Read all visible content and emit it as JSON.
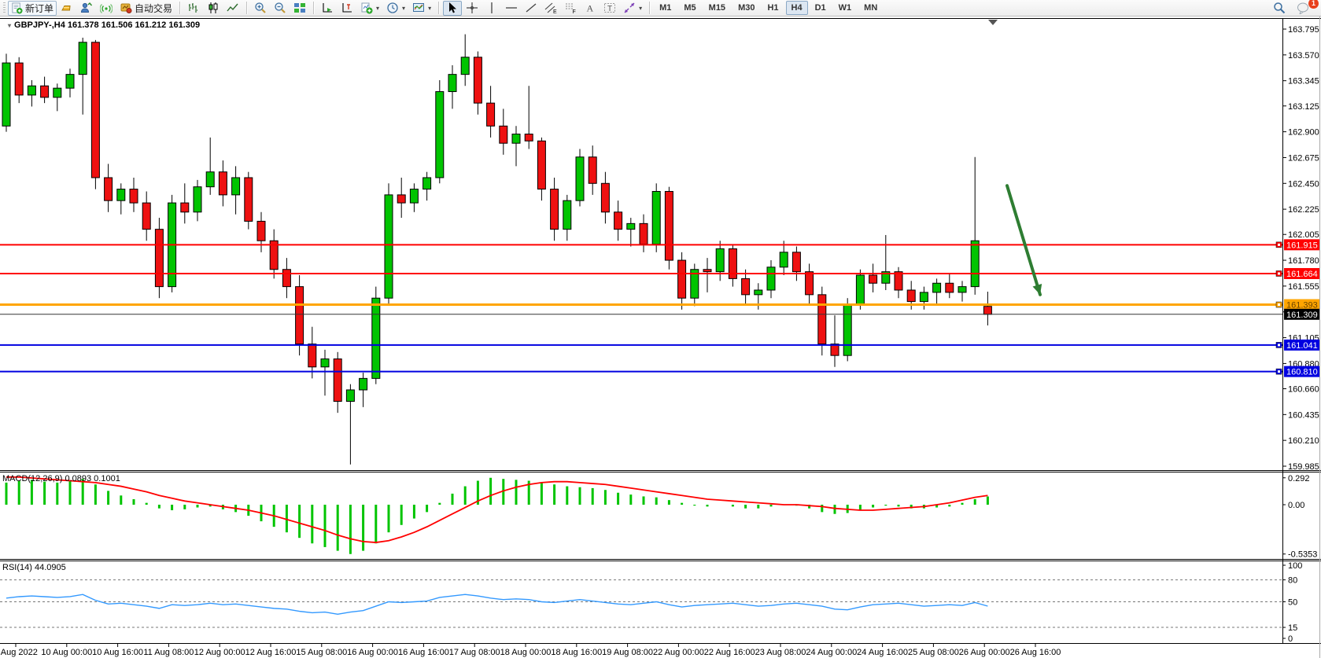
{
  "toolbar": {
    "new_order": "新订单",
    "autotrade": "自动交易",
    "timeframes": [
      "M1",
      "M5",
      "M15",
      "M30",
      "H1",
      "H4",
      "D1",
      "W1",
      "MN"
    ],
    "active_timeframe": "H4",
    "chat_badge": "1"
  },
  "chart": {
    "title": "GBPJPY-,H4  161.378 161.506 161.212 161.309",
    "symbol": "GBPJPY-",
    "period": "H4"
  },
  "chart_data": [
    {
      "type": "candlestick",
      "title": "GBPJPY-,H4",
      "current_bar": {
        "open": 161.378,
        "high": 161.506,
        "low": 161.212,
        "close": 161.309
      },
      "ylim": [
        159.95,
        163.9
      ],
      "grid": false,
      "y_ticks": [
        "163.795",
        "163.570",
        "163.345",
        "163.125",
        "162.900",
        "162.675",
        "162.450",
        "162.225",
        "162.005",
        "161.780",
        "161.555",
        "161.330",
        "161.105",
        "160.880",
        "160.660",
        "160.435",
        "160.210",
        "159.985"
      ],
      "x_labels": [
        "9 Aug 2022",
        "10 Aug 00:00",
        "10 Aug 16:00",
        "11 Aug 08:00",
        "12 Aug 00:00",
        "12 Aug 16:00",
        "15 Aug 08:00",
        "16 Aug 00:00",
        "16 Aug 16:00",
        "17 Aug 08:00",
        "18 Aug 00:00",
        "18 Aug 16:00",
        "19 Aug 08:00",
        "22 Aug 00:00",
        "22 Aug 16:00",
        "23 Aug 08:00",
        "24 Aug 00:00",
        "24 Aug 16:00",
        "25 Aug 08:00",
        "26 Aug 00:00",
        "26 Aug 16:00"
      ],
      "colors": {
        "bull": "#00C400",
        "bear": "#EE1111",
        "wick": "#000000",
        "background": "#FFFFFF",
        "border": "#000000"
      },
      "candles": [
        [
          162.95,
          163.58,
          162.9,
          163.5
        ],
        [
          163.5,
          163.55,
          163.15,
          163.22
        ],
        [
          163.22,
          163.35,
          163.12,
          163.3
        ],
        [
          163.3,
          163.38,
          163.15,
          163.2
        ],
        [
          163.2,
          163.32,
          163.08,
          163.28
        ],
        [
          163.28,
          163.45,
          163.2,
          163.4
        ],
        [
          163.4,
          163.72,
          163.05,
          163.68
        ],
        [
          163.68,
          163.7,
          162.4,
          162.5
        ],
        [
          162.5,
          162.62,
          162.2,
          162.3
        ],
        [
          162.3,
          162.45,
          162.18,
          162.4
        ],
        [
          162.4,
          162.5,
          162.2,
          162.28
        ],
        [
          162.28,
          162.38,
          161.95,
          162.05
        ],
        [
          162.05,
          162.15,
          161.45,
          161.55
        ],
        [
          161.55,
          162.35,
          161.5,
          162.28
        ],
        [
          162.28,
          162.45,
          162.1,
          162.2
        ],
        [
          162.2,
          162.48,
          162.12,
          162.42
        ],
        [
          162.42,
          162.85,
          162.35,
          162.55
        ],
        [
          162.55,
          162.65,
          162.25,
          162.35
        ],
        [
          162.35,
          162.6,
          162.18,
          162.5
        ],
        [
          162.5,
          162.55,
          162.05,
          162.12
        ],
        [
          162.12,
          162.2,
          161.85,
          161.95
        ],
        [
          161.95,
          162.05,
          161.62,
          161.7
        ],
        [
          161.7,
          161.8,
          161.45,
          161.55
        ],
        [
          161.55,
          161.65,
          160.95,
          161.05
        ],
        [
          161.05,
          161.2,
          160.75,
          160.85
        ],
        [
          160.85,
          161.0,
          160.6,
          160.92
        ],
        [
          160.92,
          160.98,
          160.45,
          160.55
        ],
        [
          160.55,
          160.7,
          160.0,
          160.65
        ],
        [
          160.65,
          160.8,
          160.5,
          160.75
        ],
        [
          160.75,
          161.55,
          160.7,
          161.45
        ],
        [
          161.45,
          162.45,
          161.4,
          162.35
        ],
        [
          162.35,
          162.5,
          162.15,
          162.28
        ],
        [
          162.28,
          162.45,
          162.2,
          162.4
        ],
        [
          162.4,
          162.55,
          162.3,
          162.5
        ],
        [
          162.5,
          163.35,
          162.45,
          163.25
        ],
        [
          163.25,
          163.48,
          163.1,
          163.4
        ],
        [
          163.4,
          163.75,
          163.3,
          163.55
        ],
        [
          163.55,
          163.6,
          163.05,
          163.15
        ],
        [
          163.15,
          163.3,
          162.85,
          162.95
        ],
        [
          162.95,
          163.1,
          162.7,
          162.8
        ],
        [
          162.8,
          162.95,
          162.6,
          162.88
        ],
        [
          162.88,
          163.3,
          162.75,
          162.82
        ],
        [
          162.82,
          162.85,
          162.3,
          162.4
        ],
        [
          162.4,
          162.5,
          161.95,
          162.05
        ],
        [
          162.05,
          162.35,
          161.95,
          162.3
        ],
        [
          162.3,
          162.75,
          162.25,
          162.68
        ],
        [
          162.68,
          162.78,
          162.35,
          162.45
        ],
        [
          162.45,
          162.55,
          162.1,
          162.2
        ],
        [
          162.2,
          162.3,
          161.95,
          162.05
        ],
        [
          162.05,
          162.15,
          161.9,
          162.1
        ],
        [
          162.1,
          162.18,
          161.85,
          161.92
        ],
        [
          161.92,
          162.45,
          161.85,
          162.38
        ],
        [
          162.38,
          162.42,
          161.7,
          161.78
        ],
        [
          161.78,
          161.85,
          161.35,
          161.45
        ],
        [
          161.45,
          161.75,
          161.38,
          161.7
        ],
        [
          161.7,
          161.8,
          161.5,
          161.68
        ],
        [
          161.68,
          161.95,
          161.6,
          161.88
        ],
        [
          161.88,
          161.92,
          161.55,
          161.62
        ],
        [
          161.62,
          161.7,
          161.4,
          161.48
        ],
        [
          161.48,
          161.58,
          161.35,
          161.52
        ],
        [
          161.52,
          161.78,
          161.45,
          161.72
        ],
        [
          161.72,
          161.95,
          161.65,
          161.85
        ],
        [
          161.85,
          161.9,
          161.6,
          161.68
        ],
        [
          161.68,
          161.75,
          161.4,
          161.48
        ],
        [
          161.48,
          161.55,
          160.95,
          161.05
        ],
        [
          161.05,
          161.3,
          160.85,
          160.95
        ],
        [
          160.95,
          161.45,
          160.9,
          161.4
        ],
        [
          161.4,
          161.7,
          161.35,
          161.65
        ],
        [
          161.65,
          161.75,
          161.5,
          161.58
        ],
        [
          161.58,
          162.0,
          161.52,
          161.68
        ],
        [
          161.68,
          161.72,
          161.45,
          161.52
        ],
        [
          161.52,
          161.6,
          161.35,
          161.42
        ],
        [
          161.42,
          161.55,
          161.35,
          161.5
        ],
        [
          161.5,
          161.62,
          161.4,
          161.58
        ],
        [
          161.58,
          161.66,
          161.45,
          161.5
        ],
        [
          161.5,
          161.6,
          161.42,
          161.55
        ],
        [
          161.55,
          162.68,
          161.48,
          161.95
        ],
        [
          161.378,
          161.506,
          161.212,
          161.309
        ]
      ],
      "hlines": [
        {
          "price": 161.915,
          "color": "#FF0000",
          "label": "161.915",
          "text_color": "#FFFFFF",
          "width": 2
        },
        {
          "price": 161.664,
          "color": "#FF0000",
          "label": "161.664",
          "text_color": "#FFFFFF",
          "width": 2
        },
        {
          "price": 161.393,
          "color": "#FFA500",
          "label": "161.393",
          "text_color": "#6b4400",
          "width": 3
        },
        {
          "price": 161.041,
          "color": "#0000E0",
          "label": "161.041",
          "text_color": "#FFFFFF",
          "width": 2
        },
        {
          "price": 160.81,
          "color": "#0000E0",
          "label": "160.810",
          "text_color": "#FFFFFF",
          "width": 2
        }
      ],
      "current_price": {
        "price": 161.309,
        "label": "161.309",
        "line_color": "#333333",
        "tag_bg": "#000000",
        "tag_fg": "#FFFFFF"
      },
      "arrow_annotation": {
        "color": "#2E7D32",
        "from_price": 162.43,
        "to_price": 161.48
      }
    },
    {
      "type": "bar",
      "name": "MACD",
      "label": "MACD(12,26,9)  0.0893  0.1001",
      "main_value": 0.0893,
      "signal_value": 0.1001,
      "y_ticks": [
        "0.292",
        "0.00",
        "-0.5353"
      ],
      "tick_values": [
        0.292,
        0,
        -0.5353
      ],
      "histogram_color": "#00C400",
      "signal_color": "#FF0000",
      "histogram": [
        0.24,
        0.26,
        0.27,
        0.25,
        0.24,
        0.26,
        0.28,
        0.22,
        0.15,
        0.1,
        0.06,
        0.02,
        -0.04,
        -0.06,
        -0.05,
        -0.03,
        -0.02,
        -0.05,
        -0.08,
        -0.12,
        -0.18,
        -0.24,
        -0.3,
        -0.36,
        -0.42,
        -0.46,
        -0.5,
        -0.5353,
        -0.5,
        -0.42,
        -0.3,
        -0.22,
        -0.15,
        -0.08,
        0.02,
        0.12,
        0.2,
        0.26,
        0.292,
        0.28,
        0.27,
        0.26,
        0.24,
        0.22,
        0.2,
        0.19,
        0.18,
        0.16,
        0.13,
        0.11,
        0.09,
        0.08,
        0.05,
        0.02,
        -0.01,
        -0.02,
        0.0,
        -0.02,
        -0.04,
        -0.04,
        -0.02,
        0.0,
        -0.01,
        -0.04,
        -0.08,
        -0.1,
        -0.09,
        -0.06,
        -0.03,
        -0.01,
        -0.02,
        -0.04,
        -0.04,
        -0.03,
        -0.02,
        0.02,
        0.06,
        0.0893
      ],
      "signal": [
        0.3,
        0.3,
        0.29,
        0.28,
        0.27,
        0.26,
        0.25,
        0.24,
        0.22,
        0.2,
        0.17,
        0.14,
        0.1,
        0.07,
        0.04,
        0.02,
        0.0,
        -0.02,
        -0.04,
        -0.06,
        -0.09,
        -0.12,
        -0.16,
        -0.2,
        -0.24,
        -0.28,
        -0.33,
        -0.37,
        -0.4,
        -0.41,
        -0.39,
        -0.35,
        -0.3,
        -0.24,
        -0.17,
        -0.1,
        -0.03,
        0.04,
        0.1,
        0.15,
        0.19,
        0.22,
        0.24,
        0.25,
        0.25,
        0.24,
        0.23,
        0.22,
        0.2,
        0.18,
        0.16,
        0.14,
        0.12,
        0.1,
        0.08,
        0.06,
        0.05,
        0.04,
        0.03,
        0.02,
        0.01,
        0.0,
        0.0,
        -0.01,
        -0.02,
        -0.04,
        -0.05,
        -0.06,
        -0.06,
        -0.05,
        -0.04,
        -0.03,
        -0.02,
        0.0,
        0.02,
        0.05,
        0.08,
        0.1001
      ]
    },
    {
      "type": "line",
      "name": "RSI",
      "label": "RSI(14) 44.0905",
      "value": 44.0905,
      "y_ticks": [
        "100",
        "80",
        "50",
        "15",
        "0"
      ],
      "tick_values": [
        100,
        80,
        50,
        15,
        0
      ],
      "levels": [
        80,
        50,
        15
      ],
      "line_color": "#3399FF",
      "values": [
        55,
        57,
        58,
        57,
        56,
        57,
        60,
        52,
        47,
        48,
        46,
        44,
        41,
        46,
        45,
        46,
        48,
        46,
        47,
        45,
        43,
        41,
        40,
        37,
        35,
        36,
        33,
        36,
        38,
        44,
        50,
        49,
        50,
        51,
        56,
        58,
        60,
        58,
        55,
        53,
        54,
        53,
        50,
        49,
        51,
        53,
        51,
        49,
        47,
        46,
        48,
        50,
        46,
        43,
        45,
        46,
        47,
        48,
        46,
        44,
        45,
        47,
        48,
        46,
        44,
        40,
        39,
        43,
        46,
        47,
        48,
        46,
        44,
        45,
        46,
        45,
        49,
        44.0905
      ]
    }
  ]
}
